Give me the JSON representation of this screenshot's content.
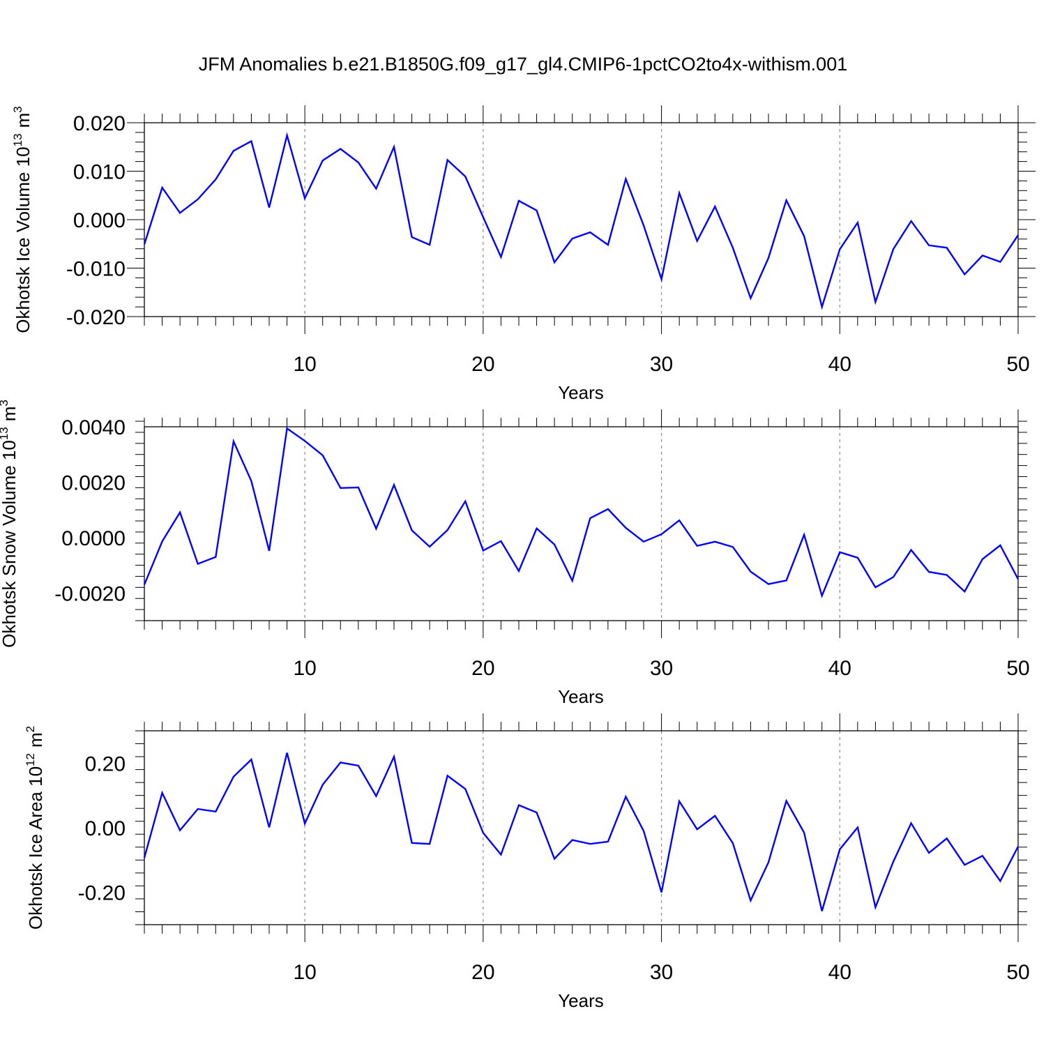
{
  "title": "JFM Anomalies b.e21.B1850G.f09_g17_gl4.CMIP6-1pctCO2to4x-withism.001",
  "line_color": "#0000ff",
  "chart_data": [
    {
      "type": "line",
      "ylabel": "Okhotsk Ice Volume 10",
      "ylabel_sup": "13",
      "ylabel_unit": "m",
      "ylabel_unit_sup": "3",
      "xlabel": "Years",
      "xlim": [
        1,
        50
      ],
      "ylim": [
        -0.02,
        0.02
      ],
      "yticks": [
        -0.02,
        -0.01,
        0.0,
        0.01,
        0.02
      ],
      "ytick_labels": [
        "-0.020",
        "-0.010",
        "0.000",
        "0.010",
        "0.020"
      ],
      "xticks": [
        10,
        20,
        30,
        40,
        50
      ],
      "xtick_labels": [
        "10",
        "20",
        "30",
        "40",
        "50"
      ],
      "grid_x": true,
      "series": [
        {
          "x": [
            1,
            2,
            3,
            4,
            5,
            6,
            7,
            8,
            9,
            10,
            11,
            12,
            13,
            14,
            15,
            16,
            17,
            18,
            19,
            20,
            21,
            22,
            23,
            24,
            25,
            26,
            27,
            28,
            29,
            30,
            31,
            32,
            33,
            34,
            35,
            36,
            37,
            38,
            39,
            40,
            41,
            42,
            43,
            44,
            45,
            46,
            47,
            48,
            49,
            50
          ],
          "values": [
            -0.0051,
            0.0066,
            0.0014,
            0.0042,
            0.0083,
            0.0142,
            0.0162,
            0.0025,
            0.0174,
            0.0044,
            0.0122,
            0.0146,
            0.0118,
            0.0064,
            0.015,
            -0.0036,
            -0.0052,
            0.0123,
            0.0089,
            0.0005,
            -0.0077,
            0.0039,
            0.0019,
            -0.0088,
            -0.0039,
            -0.0026,
            -0.0052,
            0.0084,
            -0.0012,
            -0.0123,
            0.0055,
            -0.0044,
            0.0027,
            -0.0058,
            -0.0162,
            -0.0079,
            0.004,
            -0.0034,
            -0.018,
            -0.0061,
            -0.0006,
            -0.017,
            -0.0061,
            -0.0003,
            -0.0053,
            -0.0058,
            -0.0113,
            -0.0074,
            -0.0087,
            -0.0032
          ]
        }
      ]
    },
    {
      "type": "line",
      "ylabel": "Okhotsk Snow Volume 10",
      "ylabel_sup": "13",
      "ylabel_unit": "m",
      "ylabel_unit_sup": "3",
      "xlabel": "Years",
      "xlim": [
        1,
        50
      ],
      "ylim": [
        -0.003,
        0.004
      ],
      "yticks": [
        -0.002,
        0.0,
        0.002,
        0.004
      ],
      "ytick_labels": [
        "-0.0020",
        "0.0000",
        "0.0020",
        "0.0040"
      ],
      "xticks": [
        10,
        20,
        30,
        40,
        50
      ],
      "xtick_labels": [
        "10",
        "20",
        "30",
        "40",
        "50"
      ],
      "grid_x": true,
      "series": [
        {
          "x": [
            1,
            2,
            3,
            4,
            5,
            6,
            7,
            8,
            9,
            10,
            11,
            12,
            13,
            14,
            15,
            16,
            17,
            18,
            19,
            20,
            21,
            22,
            23,
            24,
            25,
            26,
            27,
            28,
            29,
            30,
            31,
            32,
            33,
            34,
            35,
            36,
            37,
            38,
            39,
            40,
            41,
            42,
            43,
            44,
            45,
            46,
            47,
            48,
            49,
            50
          ],
          "values": [
            -0.0017,
            -0.00014,
            0.00091,
            -0.00095,
            -0.0007,
            0.00347,
            0.00204,
            -0.00048,
            0.00394,
            0.00349,
            0.00297,
            0.00179,
            0.00181,
            0.00032,
            0.0019,
            0.00026,
            -0.00033,
            0.00027,
            0.00131,
            -0.00047,
            -0.00013,
            -0.00121,
            0.00033,
            -0.00025,
            -0.00156,
            0.0007,
            0.00103,
            0.00035,
            -0.00015,
            0.00012,
            0.00062,
            -0.0003,
            -0.00015,
            -0.00034,
            -0.00123,
            -0.00168,
            -0.00155,
            0.0001,
            -0.0021,
            -0.00053,
            -0.00073,
            -0.0018,
            -0.00143,
            -0.00045,
            -0.00124,
            -0.00135,
            -0.00195,
            -0.00078,
            -0.00028,
            -0.0015
          ]
        }
      ]
    },
    {
      "type": "line",
      "ylabel": "Okhotsk Ice Area 10",
      "ylabel_sup": "12",
      "ylabel_unit": "m",
      "ylabel_unit_sup": "2",
      "xlabel": "Years",
      "xlim": [
        1,
        50
      ],
      "ylim": [
        -0.3,
        0.3
      ],
      "yticks": [
        -0.2,
        0.0,
        0.2
      ],
      "ytick_labels": [
        "-0.20",
        "0.00",
        "0.20"
      ],
      "xticks": [
        10,
        20,
        30,
        40,
        50
      ],
      "xtick_labels": [
        "10",
        "20",
        "30",
        "40",
        "50"
      ],
      "grid_x": true,
      "series": [
        {
          "x": [
            1,
            2,
            3,
            4,
            5,
            6,
            7,
            8,
            9,
            10,
            11,
            12,
            13,
            14,
            15,
            16,
            17,
            18,
            19,
            20,
            21,
            22,
            23,
            24,
            25,
            26,
            27,
            28,
            29,
            30,
            31,
            32,
            33,
            34,
            35,
            36,
            37,
            38,
            39,
            40,
            41,
            42,
            43,
            44,
            45,
            46,
            47,
            48,
            49,
            50
          ],
          "values": [
            -0.093,
            0.108,
            -0.008,
            0.058,
            0.05,
            0.158,
            0.211,
            0.001,
            0.232,
            0.013,
            0.133,
            0.202,
            0.192,
            0.098,
            0.22,
            -0.047,
            -0.05,
            0.161,
            0.12,
            -0.016,
            -0.083,
            0.07,
            0.047,
            -0.096,
            -0.038,
            -0.05,
            -0.043,
            0.096,
            -0.01,
            -0.2,
            0.082,
            -0.005,
            0.037,
            -0.048,
            -0.225,
            -0.107,
            0.083,
            -0.015,
            -0.258,
            -0.067,
            0.001,
            -0.246,
            -0.105,
            0.014,
            -0.078,
            -0.033,
            -0.115,
            -0.087,
            -0.165,
            -0.058
          ]
        }
      ]
    }
  ]
}
